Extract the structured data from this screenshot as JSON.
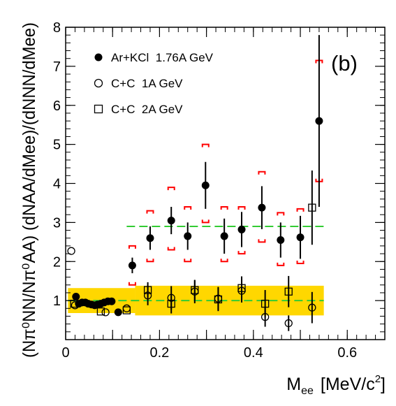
{
  "chart_data": {
    "type": "scatter",
    "panel_label": "(b)",
    "xlabel_main": "M",
    "xlabel_sub": "ee",
    "xlabel_units": "[MeV/c",
    "xlabel_units_sup": "2",
    "xlabel_units_close": "]",
    "ylabel": "(Nπ⁰NN/Nπ⁰AA) (dNAA/dMee)/(dNNN/dMee)",
    "xlim": [
      0,
      0.68
    ],
    "ylim": [
      0,
      8
    ],
    "x_ticks": [
      0,
      0.1,
      0.2,
      0.3,
      0.4,
      0.5,
      0.6
    ],
    "x_tick_labels": [
      "0",
      "",
      "0.2",
      "",
      "0.4",
      "",
      "0.6"
    ],
    "y_ticks": [
      1,
      2,
      3,
      4,
      5,
      6,
      7,
      8
    ],
    "y_tick_labels": [
      "1",
      "2",
      "3",
      "4",
      "5",
      "6",
      "7",
      "8"
    ],
    "grid": false,
    "legend_position": "top-left",
    "colors": {
      "band_fill": "#ffd700",
      "reference_line": "#33cc33",
      "systematic_bracket": "#ff0000",
      "marker": "#000000"
    },
    "bands": [
      {
        "x": [
          0.005,
          0.148
        ],
        "y": [
          0.68,
          1.32
        ]
      },
      {
        "x": [
          0.148,
          0.55
        ],
        "y": [
          0.62,
          1.38
        ]
      }
    ],
    "reference_lines": [
      {
        "y": 1.0,
        "x": [
          0.005,
          0.55
        ]
      },
      {
        "y": 2.9,
        "x": [
          0.13,
          0.55
        ]
      }
    ],
    "series": [
      {
        "name": "Ar+KCl  1.76A GeV",
        "marker": "filled-circle",
        "points": [
          {
            "x": 0.022,
            "y": 1.1
          },
          {
            "x": 0.028,
            "y": 0.92
          },
          {
            "x": 0.035,
            "y": 0.95
          },
          {
            "x": 0.042,
            "y": 0.95
          },
          {
            "x": 0.048,
            "y": 0.92
          },
          {
            "x": 0.055,
            "y": 0.9
          },
          {
            "x": 0.062,
            "y": 0.88
          },
          {
            "x": 0.068,
            "y": 0.9
          },
          {
            "x": 0.075,
            "y": 0.92
          },
          {
            "x": 0.082,
            "y": 0.95
          },
          {
            "x": 0.09,
            "y": 0.98
          },
          {
            "x": 0.098,
            "y": 0.98
          },
          {
            "x": 0.112,
            "y": 0.7
          },
          {
            "x": 0.142,
            "y": 1.9,
            "err": 0.2,
            "sys": [
              1.4,
              2.4
            ]
          },
          {
            "x": 0.18,
            "y": 2.6,
            "err": 0.3,
            "sys": [
              2.0,
              3.3
            ]
          },
          {
            "x": 0.225,
            "y": 3.05,
            "err": 0.35,
            "sys": [
              2.3,
              3.9
            ]
          },
          {
            "x": 0.26,
            "y": 2.65,
            "err": 0.35,
            "sys": [
              2.0,
              3.4
            ]
          },
          {
            "x": 0.298,
            "y": 3.95,
            "err": 0.6,
            "sys": [
              3.0,
              5.0
            ]
          },
          {
            "x": 0.338,
            "y": 2.65,
            "err": 0.45,
            "sys": [
              2.0,
              3.4
            ]
          },
          {
            "x": 0.375,
            "y": 2.82,
            "err": 0.45,
            "sys": [
              2.2,
              3.4
            ]
          },
          {
            "x": 0.418,
            "y": 3.38,
            "err": 0.55,
            "sys": [
              2.5,
              4.3
            ]
          },
          {
            "x": 0.458,
            "y": 2.55,
            "err": 0.45,
            "sys": [
              1.9,
              3.25
            ]
          },
          {
            "x": 0.5,
            "y": 2.62,
            "err": 0.55,
            "sys": [
              1.95,
              3.35
            ]
          },
          {
            "x": 0.54,
            "y": 5.6,
            "err": 2.2,
            "sys": [
              4.05,
              7.15
            ]
          }
        ]
      },
      {
        "name": "C+C  1A GeV",
        "marker": "open-circle",
        "points": [
          {
            "x": 0.012,
            "y": 2.27
          },
          {
            "x": 0.02,
            "y": 0.88
          },
          {
            "x": 0.085,
            "y": 0.7
          },
          {
            "x": 0.13,
            "y": 0.8
          },
          {
            "x": 0.175,
            "y": 1.13,
            "err": 0.25
          },
          {
            "x": 0.225,
            "y": 1.07,
            "err": 0.3
          },
          {
            "x": 0.275,
            "y": 1.23,
            "err": 0.3
          },
          {
            "x": 0.325,
            "y": 1.05,
            "err": 0.3
          },
          {
            "x": 0.375,
            "y": 1.25,
            "err": 0.3
          },
          {
            "x": 0.425,
            "y": 0.58,
            "err": 0.25
          },
          {
            "x": 0.475,
            "y": 0.42,
            "err": 0.2
          },
          {
            "x": 0.525,
            "y": 0.82,
            "err": 0.4
          }
        ]
      },
      {
        "name": "C+C  2A GeV",
        "marker": "open-square",
        "points": [
          {
            "x": 0.018,
            "y": 0.92
          },
          {
            "x": 0.075,
            "y": 0.72
          },
          {
            "x": 0.13,
            "y": 0.75
          },
          {
            "x": 0.175,
            "y": 1.27,
            "err": 0.2
          },
          {
            "x": 0.225,
            "y": 0.92,
            "err": 0.25
          },
          {
            "x": 0.275,
            "y": 1.27,
            "err": 0.25
          },
          {
            "x": 0.325,
            "y": 1.03,
            "err": 0.3
          },
          {
            "x": 0.375,
            "y": 1.32,
            "err": 0.3
          },
          {
            "x": 0.425,
            "y": 0.92,
            "err": 0.35
          },
          {
            "x": 0.475,
            "y": 1.23,
            "err": 0.4
          },
          {
            "x": 0.525,
            "y": 3.38,
            "err": 0.95
          }
        ]
      }
    ]
  }
}
